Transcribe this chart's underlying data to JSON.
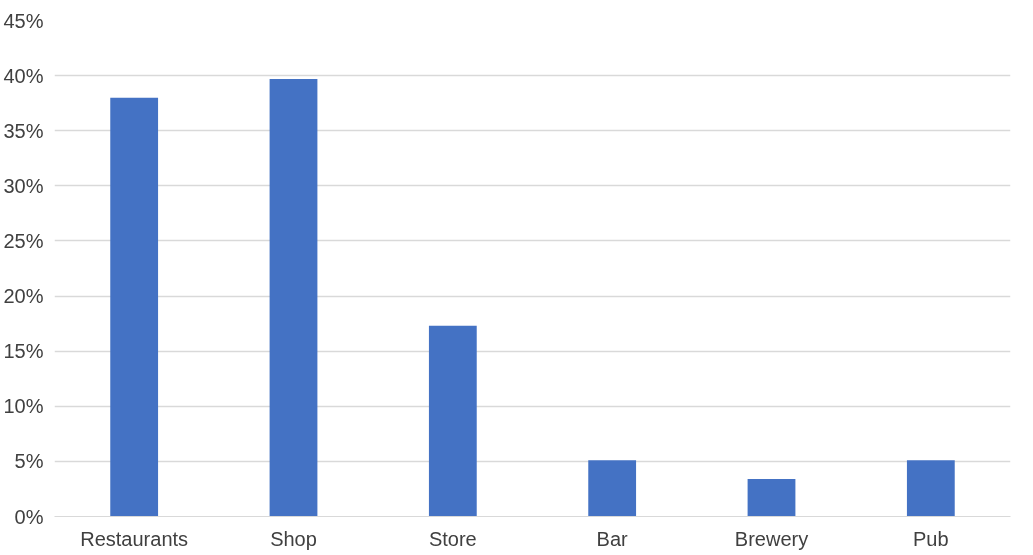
{
  "chart_data": {
    "type": "bar",
    "categories": [
      "Restaurants",
      "Shop",
      "Store",
      "Bar",
      "Brewery",
      "Pub"
    ],
    "values": [
      38,
      39.7,
      17.3,
      5.1,
      3.4,
      5.1
    ],
    "color": "#4472c4",
    "ylim": [
      0,
      45
    ],
    "yticks": [
      {
        "value": 0,
        "label": "0%"
      },
      {
        "value": 5,
        "label": "5%"
      },
      {
        "value": 10,
        "label": "10%"
      },
      {
        "value": 15,
        "label": "15%"
      },
      {
        "value": 20,
        "label": "20%"
      },
      {
        "value": 25,
        "label": "25%"
      },
      {
        "value": 30,
        "label": "30%"
      },
      {
        "value": 35,
        "label": "35%"
      },
      {
        "value": 40,
        "label": "40%"
      },
      {
        "value": 45,
        "label": "45%"
      }
    ],
    "grid": "y"
  }
}
